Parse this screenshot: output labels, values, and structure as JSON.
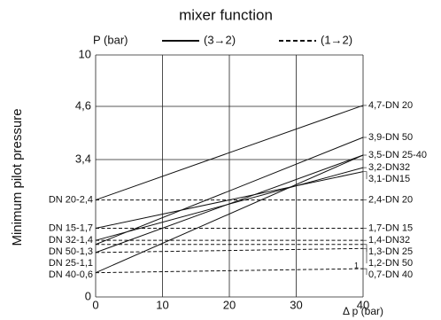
{
  "chart_data": {
    "type": "line",
    "title": "mixer function",
    "y_label": "Minimum pilot pressure",
    "y_unit_label": "P (bar)",
    "x_label": "Δ p (bar)",
    "note": "1",
    "x": [
      0,
      40
    ],
    "xlim": [
      0,
      40
    ],
    "xticks": [
      0,
      10,
      20,
      30,
      40
    ],
    "ylim": [
      0,
      10
    ],
    "yticks": [
      0,
      {
        "value": 3.4,
        "label": "3,4"
      },
      {
        "value": 4.6,
        "label": "4,6"
      },
      10
    ],
    "grid": true,
    "color": "#111111",
    "series": [
      {
        "name": "(3→2)",
        "dash": false,
        "lines": [
          {
            "values": [
              2.4,
              4.7
            ],
            "end_label": "4,7-DN 20"
          },
          {
            "values": [
              1.3,
              3.9
            ],
            "end_label": "3,9-DN 50"
          },
          {
            "values": [
              1.1,
              3.5
            ],
            "end_label": "3,5-DN 25-40"
          },
          {
            "values": [
              0.6,
              3.5
            ]
          },
          {
            "values": [
              1.4,
              3.2
            ],
            "end_label": "3,2-DN32"
          },
          {
            "values": [
              1.7,
              3.1
            ],
            "end_label": "3,1-DN15"
          }
        ]
      },
      {
        "name": "(1→2)",
        "dash": true,
        "lines": [
          {
            "values": [
              2.4,
              2.4
            ],
            "end_label": "2,4-DN 20"
          },
          {
            "values": [
              1.7,
              1.7
            ],
            "end_label": "1,7-DN 15"
          },
          {
            "values": [
              1.4,
              1.4
            ],
            "end_label": "1,4-DN32"
          },
          {
            "values": [
              1.3,
              1.3
            ],
            "end_label": "1,3-DN 25"
          },
          {
            "values": [
              1.1,
              1.2
            ],
            "end_label": "1,2-DN 50"
          },
          {
            "values": [
              0.6,
              0.7
            ],
            "end_label": "0,7-DN 40"
          }
        ]
      }
    ],
    "start_labels": [
      {
        "value": 2.4,
        "label": "DN 20-2,4"
      },
      {
        "value": 1.7,
        "label": "DN 15-1,7"
      },
      {
        "value": 1.4,
        "label": "DN 32-1,4"
      },
      {
        "value": 1.3,
        "label": "DN 50-1,3"
      },
      {
        "value": 1.1,
        "label": "DN 25-1,1"
      },
      {
        "value": 0.6,
        "label": "DN 40-0,6"
      }
    ]
  }
}
